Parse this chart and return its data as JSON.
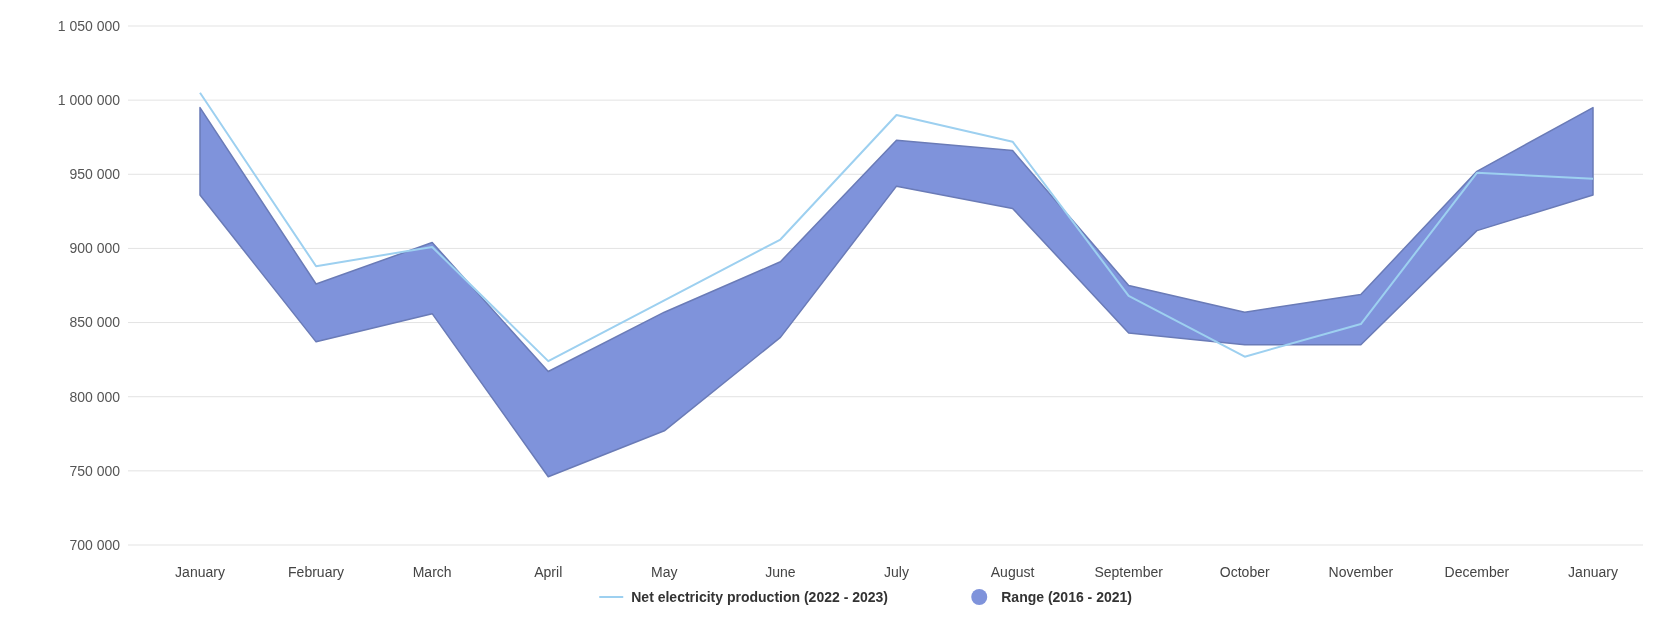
{
  "chart_data": {
    "type": "line",
    "categories": [
      "January",
      "February",
      "March",
      "April",
      "May",
      "June",
      "July",
      "August",
      "September",
      "October",
      "November",
      "December",
      "January"
    ],
    "series": [
      {
        "name": "Net electricity production (2022 - 2023)",
        "color": "#9dd0f0",
        "values": [
          1005000,
          888000,
          901000,
          824000,
          865000,
          906000,
          990000,
          972000,
          868000,
          827000,
          849000,
          951000,
          947000
        ]
      },
      {
        "name": "Range (2016 - 2021)",
        "color": "#7f93db",
        "values": [
          null,
          null,
          null,
          null,
          null,
          null,
          null,
          null,
          null,
          null,
          null,
          null,
          null
        ],
        "lower": [
          936000,
          837000,
          856000,
          746000,
          777000,
          840000,
          942000,
          927000,
          843000,
          835000,
          835000,
          912000,
          936000
        ],
        "upper": [
          995000,
          876000,
          904000,
          817000,
          857000,
          891000,
          973000,
          966000,
          875000,
          857000,
          869000,
          952000,
          995000
        ]
      }
    ],
    "ylim": [
      700000,
      1050000
    ],
    "yticks": [
      {
        "value": 700000,
        "label": "700 000"
      },
      {
        "value": 750000,
        "label": "750 000"
      },
      {
        "value": 800000,
        "label": "800 000"
      },
      {
        "value": 850000,
        "label": "850 000"
      },
      {
        "value": 900000,
        "label": "900 000"
      },
      {
        "value": 950000,
        "label": "950 000"
      },
      {
        "value": 1000000,
        "label": "1 000 000"
      },
      {
        "value": 1050000,
        "label": "1 050 000"
      }
    ],
    "grid": "y",
    "legend": "bottom"
  }
}
